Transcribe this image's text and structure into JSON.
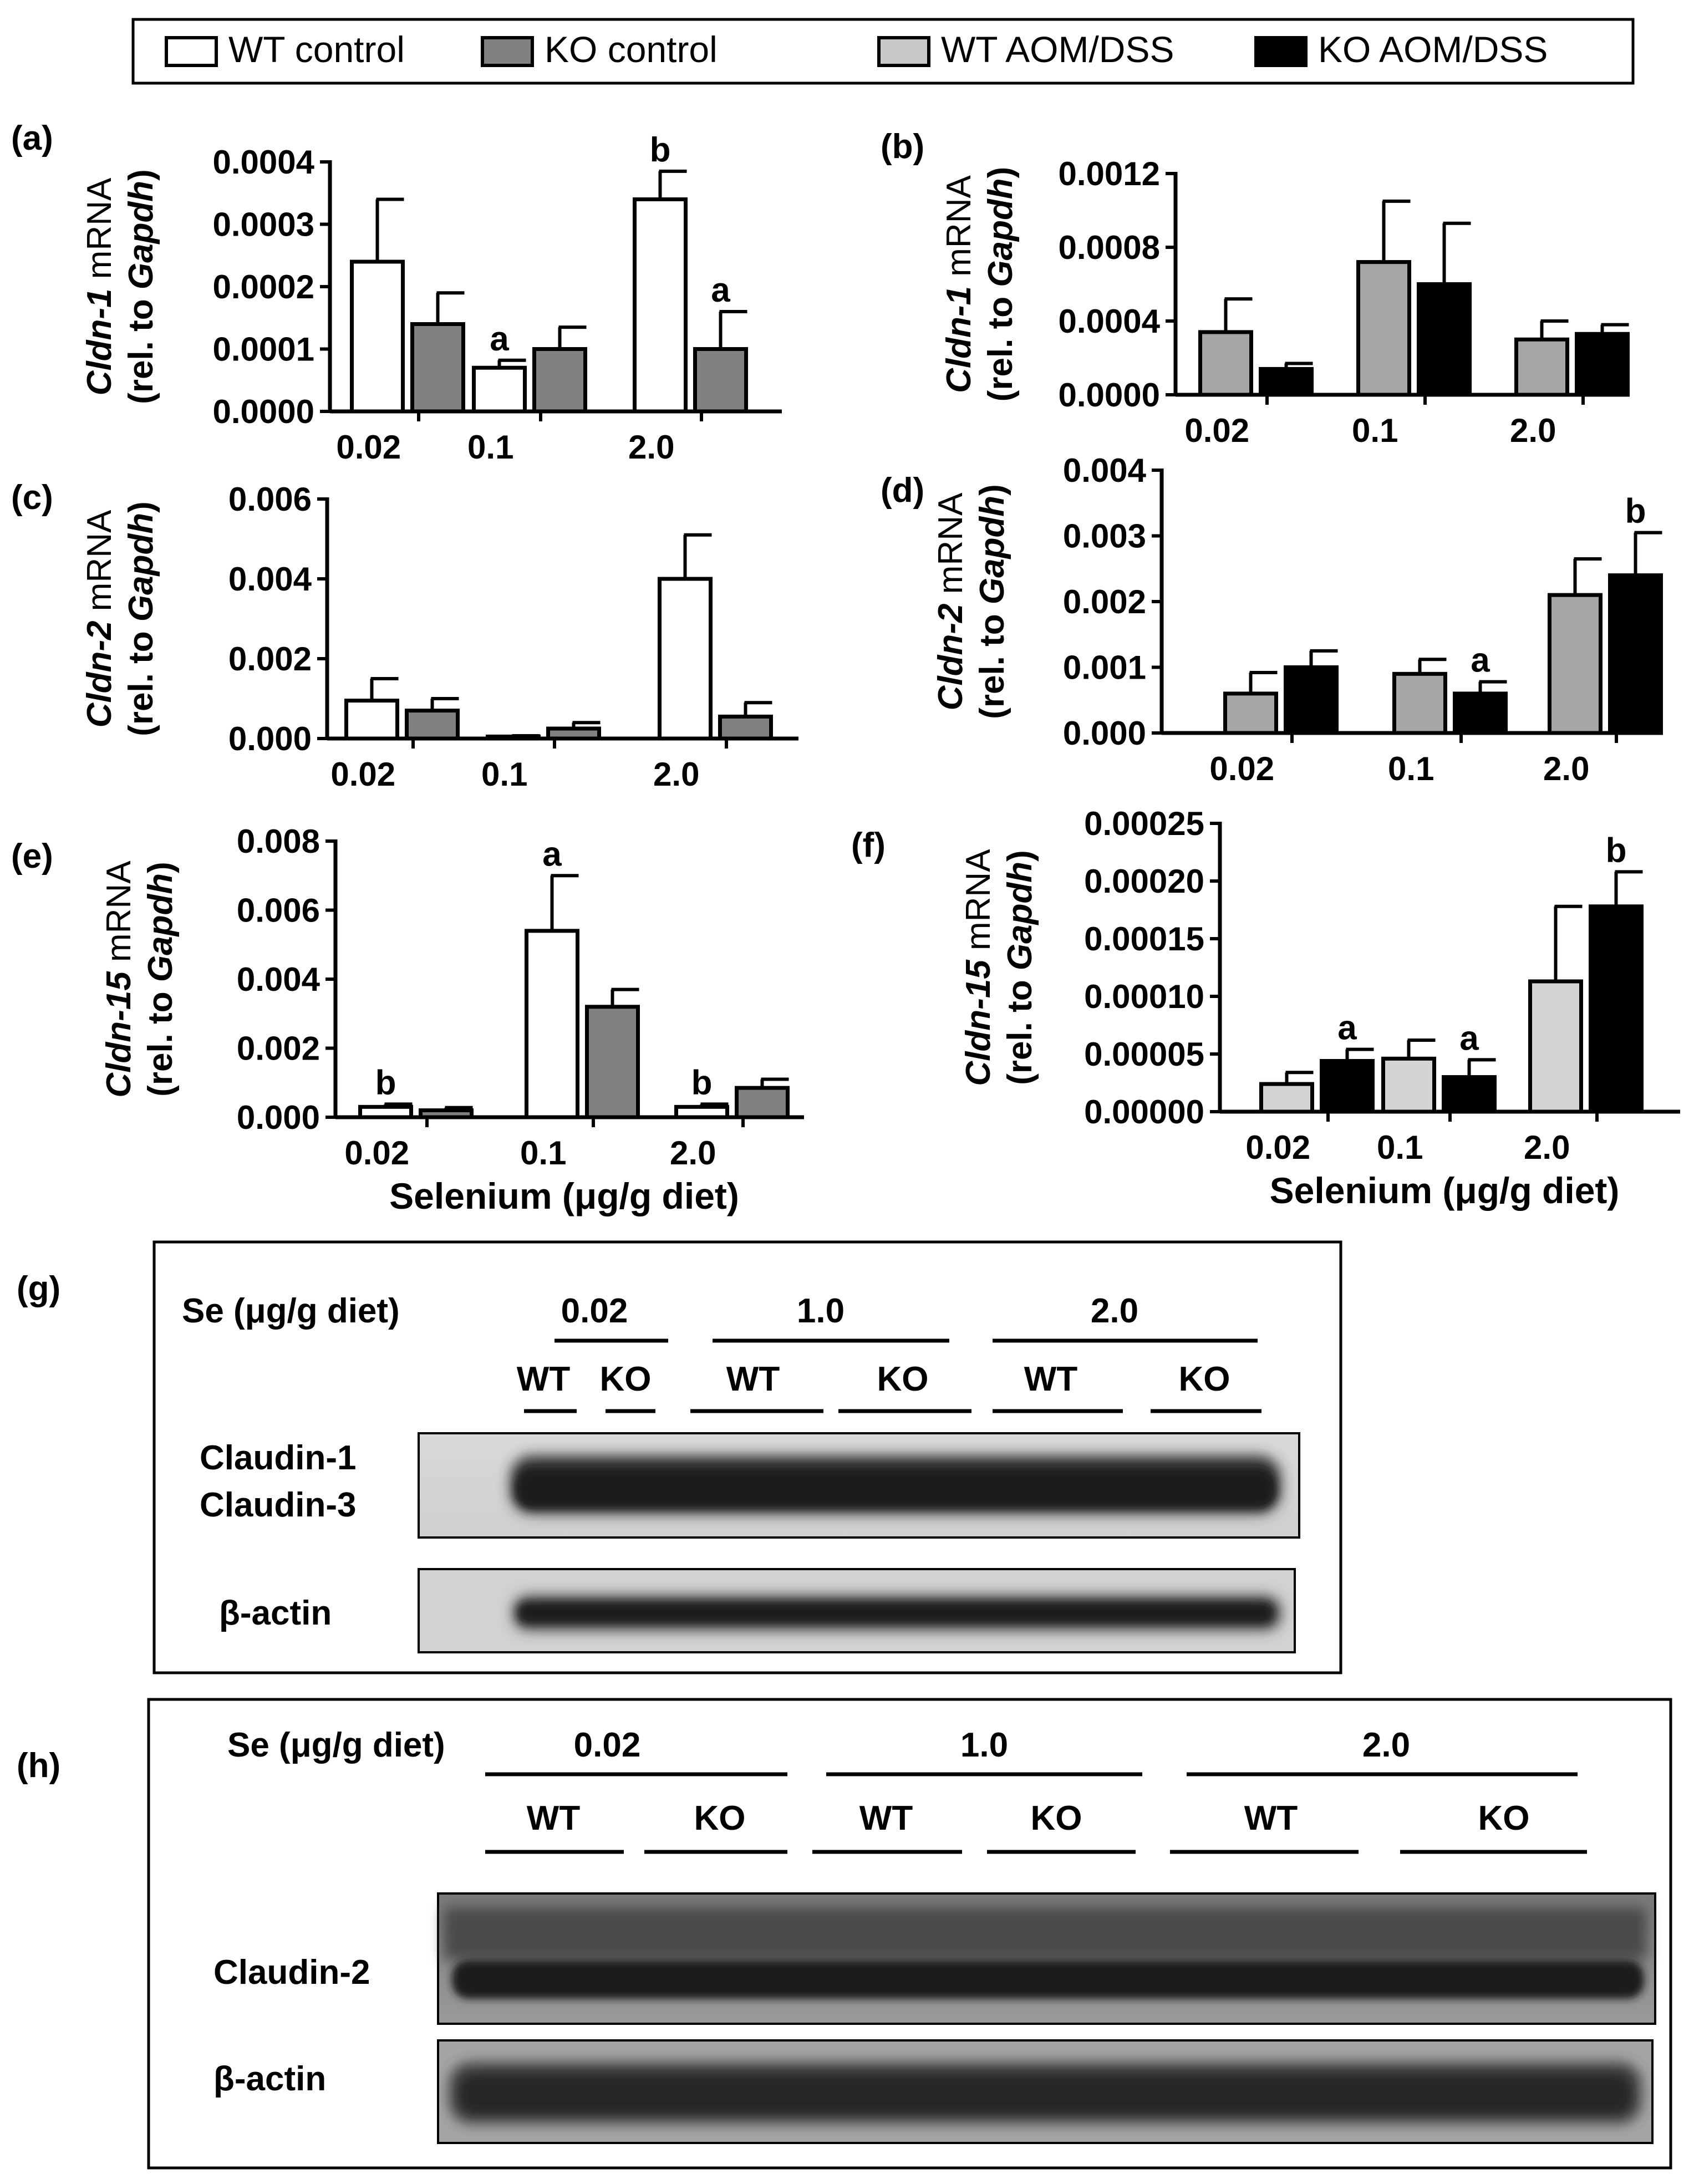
{
  "legend": [
    {
      "label": "WT control",
      "color": "#ffffff"
    },
    {
      "label": "KO control",
      "color": "#808080"
    },
    {
      "label": "WT AOM/DSS",
      "color": "#c8c8c8"
    },
    {
      "label": "KO AOM/DSS",
      "color": "#000000"
    }
  ],
  "chart_data": [
    {
      "type": "bar",
      "panel_label": "(a)",
      "ylabel_gene": "Cldn-1",
      "ylabel_suffix": " mRNA",
      "ylabel_line2_prefix": "(rel. to ",
      "ylabel_line2_gene": "Gapdh",
      "ylabel_line2_suffix": ")",
      "xlabel": "",
      "categories": [
        "0.02",
        "0.1",
        "2.0"
      ],
      "yticks": [
        "0.0000",
        "0.0001",
        "0.0002",
        "0.0003",
        "0.0004"
      ],
      "ylim": [
        0,
        0.0004
      ],
      "series": [
        {
          "name": "WT control",
          "color": "#ffffff",
          "values": [
            0.00024,
            7e-05,
            0.00034
          ],
          "errors": [
            0.0001,
            1.2e-05,
            4.5e-05
          ],
          "letters": [
            "",
            "a",
            "b"
          ]
        },
        {
          "name": "KO control",
          "color": "#808080",
          "values": [
            0.00014,
            0.0001,
            0.0001
          ],
          "errors": [
            5e-05,
            3.5e-05,
            6e-05
          ],
          "letters": [
            "",
            "",
            "a"
          ]
        }
      ]
    },
    {
      "type": "bar",
      "panel_label": "(b)",
      "ylabel_gene": "Cldn-1",
      "ylabel_suffix": " mRNA",
      "ylabel_line2_prefix": "(rel. to ",
      "ylabel_line2_gene": "Gapdh",
      "ylabel_line2_suffix": ")",
      "xlabel": "",
      "categories": [
        "0.02",
        "0.1",
        "2.0"
      ],
      "yticks": [
        "0.0000",
        "0.0004",
        "0.0008",
        "0.0012"
      ],
      "ylim": [
        0,
        0.0012
      ],
      "series": [
        {
          "name": "WT AOM/DSS",
          "color": "#a6a6a6",
          "values": [
            0.00034,
            0.00072,
            0.0003
          ],
          "errors": [
            0.00018,
            0.00033,
            0.0001
          ],
          "letters": [
            "",
            "",
            ""
          ]
        },
        {
          "name": "KO AOM/DSS",
          "color": "#000000",
          "values": [
            0.00014,
            0.0006,
            0.00033
          ],
          "errors": [
            3e-05,
            0.00033,
            5e-05
          ],
          "letters": [
            "",
            "",
            ""
          ]
        }
      ]
    },
    {
      "type": "bar",
      "panel_label": "(c)",
      "ylabel_gene": "Cldn-2",
      "ylabel_suffix": " mRNA",
      "ylabel_line2_prefix": "(rel. to ",
      "ylabel_line2_gene": "Gapdh",
      "ylabel_line2_suffix": ")",
      "xlabel": "",
      "categories": [
        "0.02",
        "0.1",
        "2.0"
      ],
      "yticks": [
        "0.000",
        "0.002",
        "0.004",
        "0.006"
      ],
      "ylim": [
        0,
        0.006
      ],
      "series": [
        {
          "name": "WT control",
          "color": "#ffffff",
          "values": [
            0.00095,
            5e-05,
            0.004
          ],
          "errors": [
            0.00055,
            2e-05,
            0.0011
          ],
          "letters": [
            "",
            "",
            ""
          ]
        },
        {
          "name": "KO control",
          "color": "#808080",
          "values": [
            0.0007,
            0.00025,
            0.00055
          ],
          "errors": [
            0.0003,
            0.00015,
            0.00035
          ],
          "letters": [
            "",
            "",
            ""
          ]
        }
      ]
    },
    {
      "type": "bar",
      "panel_label": "(d)",
      "ylabel_gene": "Cldn-2",
      "ylabel_suffix": " mRNA",
      "ylabel_line2_prefix": "(rel. to ",
      "ylabel_line2_gene": "Gapdh",
      "ylabel_line2_suffix": ")",
      "xlabel": "",
      "categories": [
        "0.02",
        "0.1",
        "2.0"
      ],
      "yticks": [
        "0.000",
        "0.001",
        "0.002",
        "0.003",
        "0.004"
      ],
      "ylim": [
        0,
        0.004
      ],
      "series": [
        {
          "name": "WT AOM/DSS",
          "color": "#a6a6a6",
          "values": [
            0.0006,
            0.0009,
            0.0021
          ],
          "errors": [
            0.00032,
            0.00022,
            0.00055
          ],
          "letters": [
            "",
            "",
            ""
          ]
        },
        {
          "name": "KO AOM/DSS",
          "color": "#000000",
          "values": [
            0.001,
            0.0006,
            0.0024
          ],
          "errors": [
            0.00025,
            0.00018,
            0.00065
          ],
          "letters": [
            "",
            "a",
            "b"
          ]
        }
      ]
    },
    {
      "type": "bar",
      "panel_label": "(e)",
      "ylabel_gene": "Cldn-15",
      "ylabel_suffix": " mRNA",
      "ylabel_line2_prefix": "(rel. to ",
      "ylabel_line2_gene": "Gapdh",
      "ylabel_line2_suffix": ")",
      "xlabel": "Selenium (μg/g diet)",
      "categories": [
        "0.02",
        "0.1",
        "2.0"
      ],
      "yticks": [
        "0.000",
        "0.002",
        "0.004",
        "0.006",
        "0.008"
      ],
      "ylim": [
        0,
        0.008
      ],
      "series": [
        {
          "name": "WT control",
          "color": "#ffffff",
          "values": [
            0.0003,
            0.0054,
            0.0003
          ],
          "errors": [
            8e-05,
            0.0016,
            8e-05
          ],
          "letters": [
            "b",
            "a",
            "b"
          ]
        },
        {
          "name": "KO control",
          "color": "#808080",
          "values": [
            0.0002,
            0.0032,
            0.00085
          ],
          "errors": [
            8e-05,
            0.0005,
            0.00025
          ],
          "letters": [
            "",
            "",
            ""
          ]
        }
      ]
    },
    {
      "type": "bar",
      "panel_label": "(f)",
      "ylabel_gene": "Cldn-15",
      "ylabel_suffix": " mRNA",
      "ylabel_line2_prefix": "(rel. to ",
      "ylabel_line2_gene": "Gapdh",
      "ylabel_line2_suffix": ")",
      "xlabel": "Selenium (μg/g diet)",
      "categories": [
        "0.02",
        "0.1",
        "2.0"
      ],
      "yticks": [
        "0.00000",
        "0.00005",
        "0.00010",
        "0.00015",
        "0.00020",
        "0.00025"
      ],
      "ylim": [
        0,
        0.00025
      ],
      "series": [
        {
          "name": "WT AOM/DSS",
          "color": "#d4d4d4",
          "values": [
            2.4e-05,
            4.6e-05,
            0.000113
          ],
          "errors": [
            1e-05,
            1.6e-05,
            6.5e-05
          ],
          "letters": [
            "",
            "",
            ""
          ]
        },
        {
          "name": "KO AOM/DSS",
          "color": "#000000",
          "values": [
            4.4e-05,
            3e-05,
            0.000178
          ],
          "errors": [
            1e-05,
            1.5e-05,
            3e-05
          ],
          "letters": [
            "a",
            "a",
            "b"
          ]
        }
      ]
    }
  ],
  "blots": {
    "g": {
      "panel_label": "(g)",
      "se_label": "Se (μg/g diet)",
      "doses": [
        "0.02",
        "1.0",
        "2.0"
      ],
      "genotypes": [
        "WT",
        "KO",
        "WT",
        "KO",
        "WT",
        "KO"
      ],
      "band1_labels": [
        "Claudin-1",
        "Claudin-3"
      ],
      "band2_label": "β-actin"
    },
    "h": {
      "panel_label": "(h)",
      "se_label": "Se (μg/g diet)",
      "doses": [
        "0.02",
        "1.0",
        "2.0"
      ],
      "genotypes": [
        "WT",
        "KO",
        "WT",
        "KO",
        "WT",
        "KO"
      ],
      "band1_label": "Claudin-2",
      "band2_label": "β-actin"
    }
  }
}
